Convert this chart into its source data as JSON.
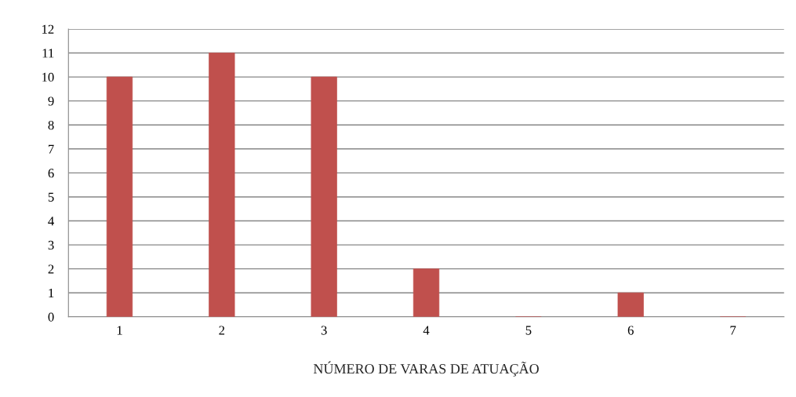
{
  "chart_data": {
    "type": "bar",
    "xlabel": "NÚMERO DE VARAS DE ATUAÇÃO",
    "categories": [
      "1",
      "2",
      "3",
      "4",
      "5",
      "6",
      "7"
    ],
    "values": [
      10,
      11,
      10,
      2,
      0,
      1,
      0
    ],
    "color": "#c0504d",
    "ylim": [
      0,
      12
    ],
    "yticks": [
      0,
      1,
      2,
      3,
      4,
      5,
      6,
      7,
      8,
      9,
      10,
      11,
      12
    ],
    "grid": "y"
  }
}
